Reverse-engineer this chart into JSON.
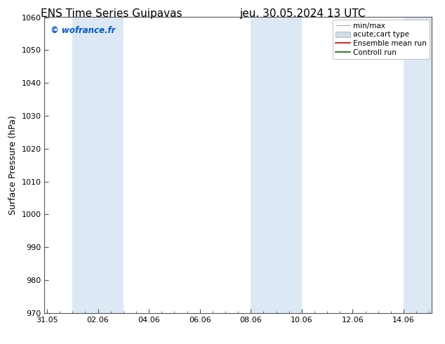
{
  "title_left": "ENS Time Series Guipavas",
  "title_right": "jeu. 30.05.2024 13 UTC",
  "ylabel": "Surface Pressure (hPa)",
  "ylim": [
    970,
    1060
  ],
  "yticks": [
    970,
    980,
    990,
    1000,
    1010,
    1020,
    1030,
    1040,
    1050,
    1060
  ],
  "xtick_labels": [
    "31.05",
    "02.06",
    "04.06",
    "06.06",
    "08.06",
    "10.06",
    "12.06",
    "14.06"
  ],
  "xtick_positions": [
    0,
    2,
    4,
    6,
    8,
    10,
    12,
    14
  ],
  "xlim": [
    -0.1,
    15.1
  ],
  "shaded_bands": [
    {
      "x_start": 1,
      "x_end": 3
    },
    {
      "x_start": 8,
      "x_end": 10
    },
    {
      "x_start": 14,
      "x_end": 15.1
    }
  ],
  "shade_color": "#dce9f5",
  "bg_color": "#ffffff",
  "watermark": "© wofrance.fr",
  "watermark_color": "#0055cc",
  "legend_entries": [
    {
      "label": "min/max"
    },
    {
      "label": "acute;cart type"
    },
    {
      "label": "Ensemble mean run"
    },
    {
      "label": "Controll run"
    }
  ],
  "title_fontsize": 11,
  "tick_fontsize": 8,
  "ylabel_fontsize": 9,
  "legend_fontsize": 7.5
}
